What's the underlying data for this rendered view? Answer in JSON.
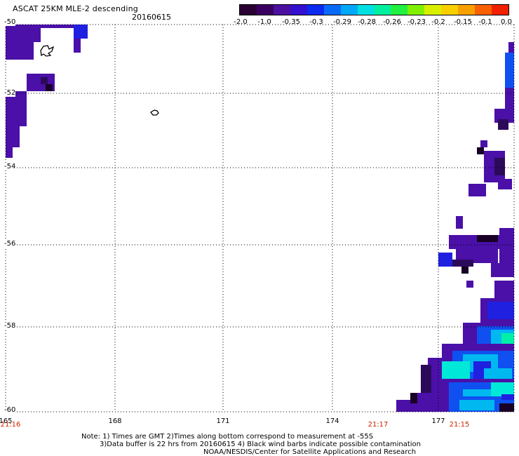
{
  "header": {
    "title": "ASCAT 25KM MLE-2 descending",
    "date": "20160615"
  },
  "colorbar": {
    "labels": [
      "-2.0",
      "-1.0",
      "-0.35",
      "-0.3",
      "-0.29",
      "-0.28",
      "-0.26",
      "-0.23",
      "-0.2",
      "-0.15",
      "-0.1",
      "0.0"
    ],
    "colors": [
      "#2a0033",
      "#3a0060",
      "#4c10a0",
      "#3310d0",
      "#0a2af0",
      "#0a6af8",
      "#00a8f8",
      "#00e0e0",
      "#00f0a0",
      "#20f040",
      "#80f000",
      "#d8f000",
      "#f8d000",
      "#f8a000",
      "#f86000",
      "#f02000"
    ]
  },
  "map": {
    "lat_labels": [
      "-50",
      "-52",
      "-54",
      "-56",
      "-58",
      "-60"
    ],
    "lon_labels": [
      "165",
      "168",
      "171",
      "174",
      "177"
    ],
    "time_labels": [
      "21:16",
      "21:17",
      "21:15"
    ]
  },
  "notes": {
    "line1": "Note: 1) Times are GMT 2)Times along bottom correspond to measurement at -55S",
    "line2": "3)Data buffer is 22 hrs from 20160615 4) Black wind barbs indicate possible contamination",
    "line3": "NOAA/NESDIS/Center for Satellite Applications and Research"
  }
}
